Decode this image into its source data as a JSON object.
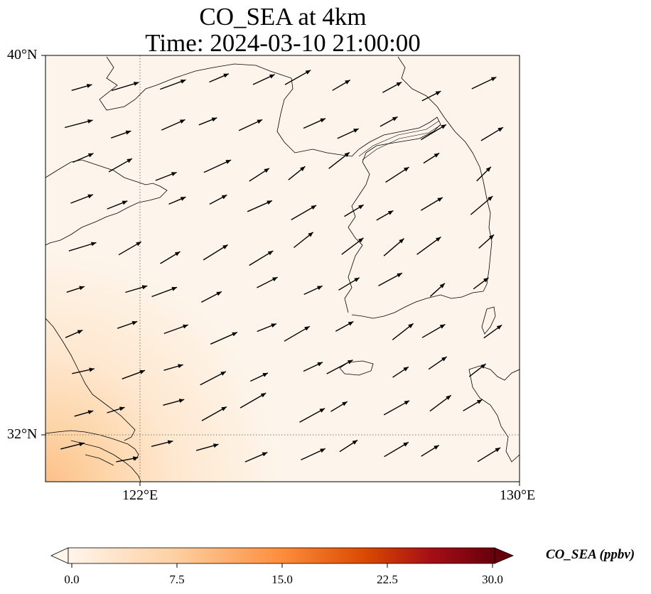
{
  "title": {
    "line1": "CO_SEA at 4km",
    "line2": "Time: 2024-03-10 21:00:00"
  },
  "map": {
    "lat_range": [
      31,
      40
    ],
    "lon_range": [
      120,
      130
    ],
    "lat_labels": [
      "40°N",
      "32°N"
    ],
    "lon_labels": [
      "122°E",
      "130°E"
    ],
    "gridlines": "dotted",
    "coastlines": true,
    "wind_vectors": "arrows toward northeast",
    "field_colormap": "white-orange-red-darkred"
  },
  "colorbar": {
    "label": "CO_SEA (ppbv)",
    "min": 0.0,
    "max": 30.0,
    "ticks": [
      "0.0",
      "7.5",
      "15.0",
      "22.5",
      "30.0"
    ],
    "extend": "both",
    "colors": [
      "#fff5eb",
      "#fdd0a2",
      "#fd8d3c",
      "#d94801",
      "#a50f15",
      "#67000d"
    ]
  }
}
